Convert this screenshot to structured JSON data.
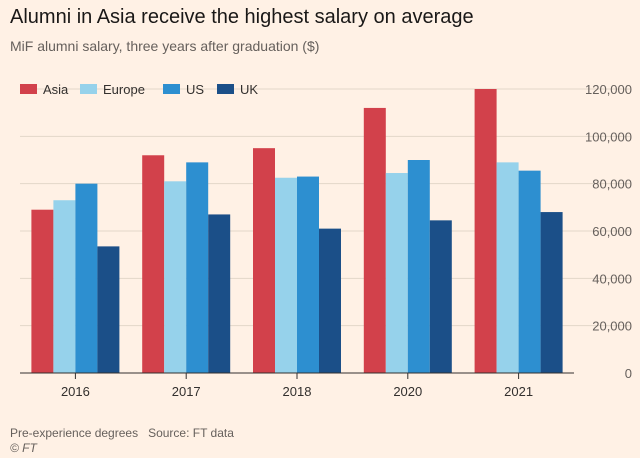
{
  "colors": {
    "background": "#fff1e5",
    "axis": "#33302e",
    "grid": "#e3d6c9",
    "series": [
      "#d2414b",
      "#96d2eb",
      "#2d8fd0",
      "#1b4f88"
    ]
  },
  "footnote": {
    "note": "Pre-experience degrees",
    "source": "Source: FT data",
    "credit": "© FT"
  },
  "chart_data": {
    "type": "bar",
    "title": "Alumni in Asia receive the highest salary on average",
    "subtitle": "MiF alumni salary, three years after graduation ($)",
    "categories": [
      "2016",
      "2017",
      "2018",
      "2020",
      "2021"
    ],
    "series": [
      {
        "name": "Asia",
        "values": [
          69000,
          92000,
          95000,
          112000,
          120000
        ]
      },
      {
        "name": "Europe",
        "values": [
          73000,
          81000,
          82500,
          84500,
          89000
        ]
      },
      {
        "name": "US",
        "values": [
          80000,
          89000,
          83000,
          90000,
          85500
        ]
      },
      {
        "name": "UK",
        "values": [
          53500,
          67000,
          61000,
          64500,
          68000
        ]
      }
    ],
    "ylim": [
      0,
      120000
    ],
    "yticks": [
      "0",
      "20,000",
      "40,000",
      "60,000",
      "80,000",
      "100,000",
      "120,000"
    ],
    "ytick_values": [
      0,
      20000,
      40000,
      60000,
      80000,
      100000,
      120000
    ],
    "y_axis_position": "right",
    "grid": true,
    "legend": "top-left"
  }
}
